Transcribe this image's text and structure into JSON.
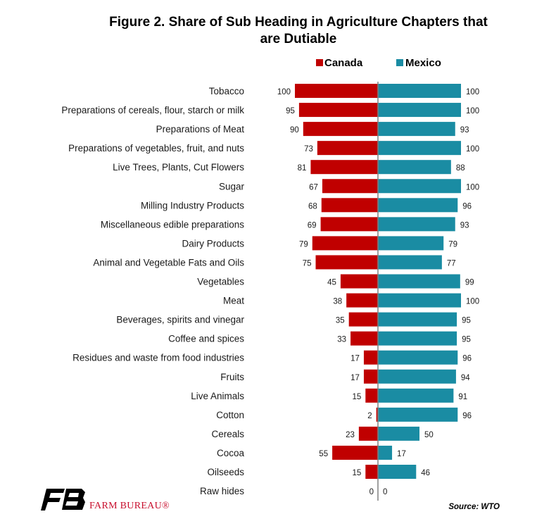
{
  "chart_data": {
    "type": "bar",
    "orientation": "horizontal-diverging",
    "title_line1": "Figure 2. Share of Sub Heading in Agriculture Chapters that",
    "title_line2": "are Dutiable",
    "categories": [
      "Tobacco",
      "Preparations of cereals, flour, starch or milk",
      "Preparations of Meat",
      "Preparations of vegetables, fruit, and nuts",
      "Live Trees, Plants, Cut Flowers",
      "Sugar",
      "Milling Industry Products",
      "Miscellaneous edible preparations",
      "Dairy Products",
      "Animal and Vegetable Fats and Oils",
      "Vegetables",
      "Meat",
      "Beverages, spirits and vinegar",
      "Coffee and spices",
      "Residues and waste from  food industries",
      "Fruits",
      "Live Animals",
      "Cotton",
      "Cereals",
      "Cocoa",
      "Oilseeds",
      "Raw hides"
    ],
    "series": [
      {
        "name": "Canada",
        "color": "#c00000",
        "values": [
          100,
          95,
          90,
          73,
          81,
          67,
          68,
          69,
          79,
          75,
          45,
          38,
          35,
          33,
          17,
          17,
          15,
          2,
          23,
          55,
          15,
          0
        ]
      },
      {
        "name": "Mexico",
        "color": "#1a8ca3",
        "values": [
          100,
          100,
          93,
          100,
          88,
          100,
          96,
          93,
          79,
          77,
          99,
          100,
          95,
          95,
          96,
          94,
          91,
          96,
          50,
          17,
          46,
          0
        ]
      }
    ],
    "xlim": [
      0,
      100
    ],
    "legend_position": "top",
    "grid": false
  },
  "source": "Source: WTO",
  "logo": {
    "text": "FARM BUREAU®",
    "mark_color": "#000000",
    "text_color": "#c8102e",
    "icon": "fb-logo-icon"
  },
  "axis_color": "#808080"
}
